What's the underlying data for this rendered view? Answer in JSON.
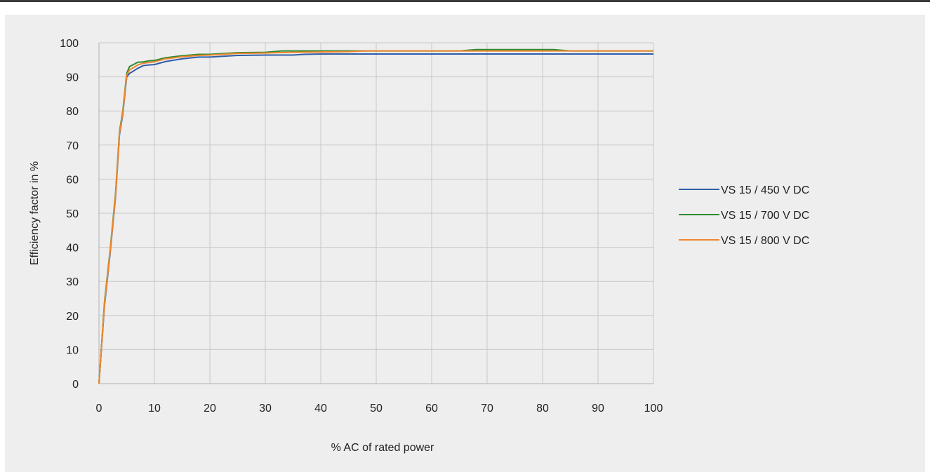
{
  "chart_data": {
    "type": "line",
    "xlabel": "% AC of rated power",
    "ylabel": "Efficiency factor in %",
    "xlim": [
      0,
      100
    ],
    "ylim": [
      0,
      100
    ],
    "xticks": [
      0,
      10,
      20,
      30,
      40,
      50,
      60,
      70,
      80,
      90,
      100
    ],
    "yticks": [
      0,
      10,
      20,
      30,
      40,
      50,
      60,
      70,
      80,
      90,
      100
    ],
    "grid": true,
    "legend_position": "right",
    "series": [
      {
        "name": "VS 15 / 450 V DC",
        "color": "#2e5ea8",
        "points": [
          [
            0,
            0
          ],
          [
            1,
            23
          ],
          [
            2,
            38
          ],
          [
            3,
            55
          ],
          [
            3.7,
            73
          ],
          [
            4.3,
            79
          ],
          [
            5,
            90
          ],
          [
            5.5,
            91
          ],
          [
            7,
            92.5
          ],
          [
            8,
            93.3
          ],
          [
            9,
            93.5
          ],
          [
            10,
            93.6
          ],
          [
            12,
            94.5
          ],
          [
            15,
            95.3
          ],
          [
            18,
            95.8
          ],
          [
            20,
            95.8
          ],
          [
            25,
            96.3
          ],
          [
            30,
            96.4
          ],
          [
            35,
            96.4
          ],
          [
            37,
            96.6
          ],
          [
            40,
            96.7
          ],
          [
            50,
            96.7
          ],
          [
            60,
            96.7
          ],
          [
            70,
            96.7
          ],
          [
            80,
            96.7
          ],
          [
            90,
            96.7
          ],
          [
            100,
            96.7
          ]
        ]
      },
      {
        "name": "VS 15 / 700 V DC",
        "color": "#2e8a30",
        "points": [
          [
            0,
            0
          ],
          [
            1,
            24
          ],
          [
            2,
            39
          ],
          [
            3,
            56
          ],
          [
            3.7,
            74
          ],
          [
            4.3,
            80
          ],
          [
            5,
            91
          ],
          [
            5.5,
            93
          ],
          [
            7,
            94.3
          ],
          [
            8,
            94.4
          ],
          [
            9,
            94.7
          ],
          [
            10,
            94.8
          ],
          [
            12,
            95.6
          ],
          [
            15,
            96.2
          ],
          [
            18,
            96.6
          ],
          [
            20,
            96.6
          ],
          [
            25,
            97.1
          ],
          [
            30,
            97.2
          ],
          [
            33,
            97.6
          ],
          [
            40,
            97.6
          ],
          [
            45,
            97.6
          ],
          [
            50,
            97.6
          ],
          [
            60,
            97.6
          ],
          [
            65,
            97.6
          ],
          [
            68,
            98
          ],
          [
            75,
            98
          ],
          [
            82,
            98
          ],
          [
            85,
            97.6
          ],
          [
            90,
            97.6
          ],
          [
            100,
            97.6
          ]
        ]
      },
      {
        "name": "VS 15 / 800 V DC",
        "color": "#f0862e",
        "points": [
          [
            0,
            0
          ],
          [
            1,
            23.5
          ],
          [
            2,
            38.5
          ],
          [
            3,
            55.5
          ],
          [
            3.7,
            73.5
          ],
          [
            4.3,
            79.5
          ],
          [
            5,
            90.5
          ],
          [
            5.5,
            92
          ],
          [
            7,
            93.5
          ],
          [
            8,
            94
          ],
          [
            9,
            94.2
          ],
          [
            10,
            94.4
          ],
          [
            12,
            95.3
          ],
          [
            15,
            95.9
          ],
          [
            18,
            96.3
          ],
          [
            20,
            96.4
          ],
          [
            25,
            96.9
          ],
          [
            30,
            97
          ],
          [
            35,
            97.2
          ],
          [
            40,
            97.3
          ],
          [
            45,
            97.4
          ],
          [
            48,
            97.6
          ],
          [
            50,
            97.6
          ],
          [
            60,
            97.6
          ],
          [
            70,
            97.6
          ],
          [
            80,
            97.6
          ],
          [
            90,
            97.6
          ],
          [
            100,
            97.6
          ]
        ]
      }
    ]
  }
}
